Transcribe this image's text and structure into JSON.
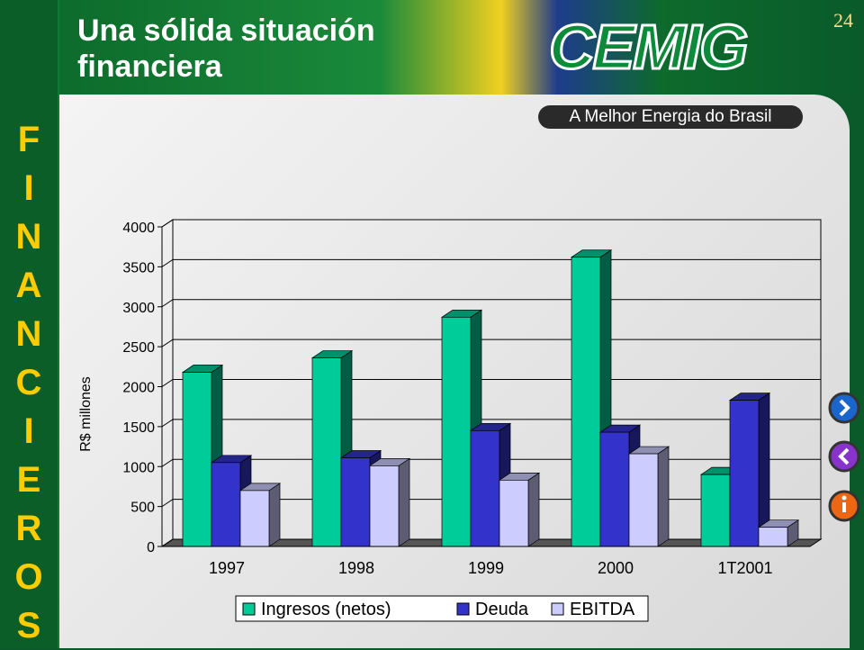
{
  "slide": {
    "title": "Una sólida situación financiera",
    "page_number": "24",
    "side_text": "FINANCIEROS",
    "logo": "CEMIG",
    "tagline": "A Melhor Energia do Brasil"
  },
  "chart_data": {
    "type": "bar",
    "categories": [
      "1997",
      "1998",
      "1999",
      "2000",
      "1T2001"
    ],
    "series": [
      {
        "name": "Ingresos (netos)",
        "color": "#00cc99",
        "values": [
          2180,
          2360,
          2870,
          3620,
          900
        ]
      },
      {
        "name": "Deuda",
        "color": "#3333cc",
        "values": [
          1050,
          1110,
          1450,
          1430,
          1830
        ]
      },
      {
        "name": "EBITDA",
        "color": "#ccccff",
        "values": [
          700,
          1010,
          830,
          1160,
          240
        ]
      }
    ],
    "ylabel": "R$ millones",
    "ylim": [
      0,
      4000
    ],
    "yticks": [
      0,
      500,
      1000,
      1500,
      2000,
      2500,
      3000,
      3500,
      4000
    ],
    "grid": true,
    "legend": "bottom"
  }
}
